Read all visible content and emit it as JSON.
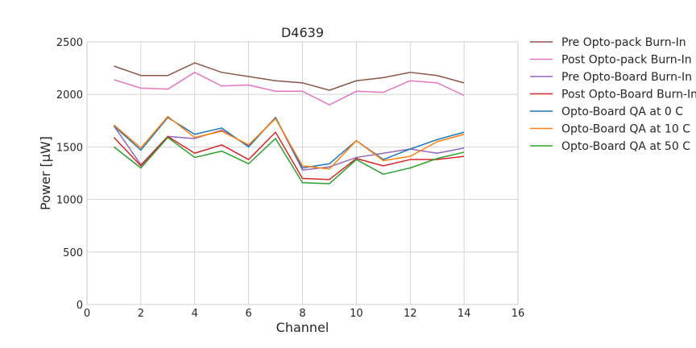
{
  "chart_data": {
    "type": "line",
    "title": "D4639",
    "xlabel": "Channel",
    "ylabel": "Power [μW]",
    "xlim": [
      0,
      16
    ],
    "ylim": [
      0,
      2500
    ],
    "xticks": [
      0,
      2,
      4,
      6,
      8,
      10,
      12,
      14,
      16
    ],
    "yticks": [
      0,
      500,
      1000,
      1500,
      2000,
      2500
    ],
    "grid": true,
    "legend_position": "outside-right",
    "x": [
      1,
      2,
      3,
      4,
      5,
      6,
      7,
      8,
      9,
      10,
      11,
      12,
      13,
      14
    ],
    "series": [
      {
        "name": "Pre Opto-pack Burn-In",
        "color": "#8c564b",
        "values": [
          2270,
          2180,
          2180,
          2300,
          2210,
          2170,
          2130,
          2110,
          2040,
          2130,
          2160,
          2210,
          2180,
          2110
        ]
      },
      {
        "name": "Post Opto-pack Burn-In",
        "color": "#e377c2",
        "values": [
          2140,
          2060,
          2050,
          2210,
          2080,
          2090,
          2030,
          2030,
          1900,
          2030,
          2020,
          2130,
          2110,
          1990
        ]
      },
      {
        "name": "Pre Opto-Board Burn-In",
        "color": "#9467bd",
        "values": [
          1700,
          1330,
          1600,
          1580,
          1660,
          1510,
          1780,
          1280,
          1310,
          1400,
          1440,
          1480,
          1440,
          1490
        ]
      },
      {
        "name": "Post Opto-Board Burn-In",
        "color": "#d62728",
        "values": [
          1590,
          1320,
          1600,
          1440,
          1520,
          1380,
          1640,
          1200,
          1190,
          1390,
          1320,
          1380,
          1380,
          1410
        ]
      },
      {
        "name": "Opto-Board QA at 0 C",
        "color": "#1f77b4",
        "values": [
          1700,
          1470,
          1780,
          1620,
          1680,
          1500,
          1780,
          1300,
          1340,
          1560,
          1380,
          1480,
          1570,
          1640
        ]
      },
      {
        "name": "Opto-Board QA at 10 C",
        "color": "#ff7f0e",
        "values": [
          1710,
          1490,
          1790,
          1590,
          1650,
          1520,
          1770,
          1320,
          1290,
          1560,
          1370,
          1410,
          1550,
          1620
        ]
      },
      {
        "name": "Opto-Board QA at 50 C",
        "color": "#2ca02c",
        "values": [
          1500,
          1300,
          1590,
          1400,
          1460,
          1340,
          1580,
          1160,
          1150,
          1380,
          1240,
          1300,
          1390,
          1450
        ]
      }
    ]
  }
}
